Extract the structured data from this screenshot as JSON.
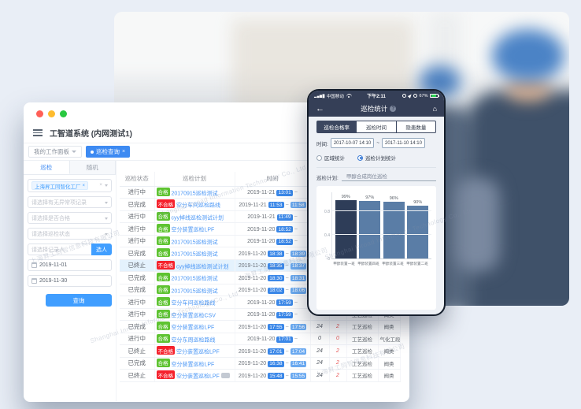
{
  "background": {
    "watermark_cn": "上海昇工同智信息科技有限公司",
    "watermark_en": "Shanghai Inroad Information Technology Co., Ltd"
  },
  "desktop": {
    "window_title": "工智道系统 (内网测试1)",
    "workspace_tabs": [
      {
        "label": "我的工作面板",
        "active": false
      },
      {
        "label": "巡检查询",
        "active": true
      }
    ],
    "sidebar": {
      "tabs": [
        {
          "label": "巡检",
          "active": true
        },
        {
          "label": "随机",
          "active": false
        }
      ],
      "factory_tag": "上海昇工同智化工厂",
      "filters": [
        {
          "placeholder": "请选择有无异常项记录"
        },
        {
          "placeholder": "请选择是否合格"
        },
        {
          "placeholder": "请选择巡检状态"
        }
      ],
      "recorder_placeholder": "请选择记录人",
      "recorder_button": "选人",
      "date_from": "2019-11-01",
      "date_to": "2019-11-30",
      "search_button": "查询"
    },
    "table": {
      "headers": [
        "巡检状态",
        "巡检计划",
        "时间",
        "编写",
        "",
        "",
        ""
      ],
      "rows": [
        {
          "status": "进行中",
          "result": "合格",
          "plan": "20170915巡检测试",
          "date": "2019-11-21",
          "start": "13:01",
          "end": "",
          "n1": "0",
          "n2": "0",
          "type": "工艺巡检",
          "area": "阀类",
          "highlight": false
        },
        {
          "status": "已完成",
          "result": "不合格",
          "plan": "空分车间巡检路线",
          "date": "2019-11-21",
          "start": "11:53",
          "end": "11:58",
          "n1": "24",
          "n2": "2",
          "type": "工艺巡检",
          "area": "阀类",
          "highlight": false
        },
        {
          "status": "进行中",
          "result": "合格",
          "plan": "cyy掉线巡检测试计划",
          "date": "2019-11-21",
          "start": "11:49",
          "end": "",
          "n1": "0",
          "n2": "0",
          "type": "工艺巡检",
          "area": "阀类",
          "highlight": false
        },
        {
          "status": "进行中",
          "result": "合格",
          "plan": "空分装置巡检LPF",
          "date": "2019-11-20",
          "start": "18:52",
          "end": "",
          "n1": "0",
          "n2": "0",
          "type": "工艺巡检",
          "area": "阀类",
          "highlight": false
        },
        {
          "status": "进行中",
          "result": "合格",
          "plan": "20170915巡检测试",
          "date": "2019-11-20",
          "start": "18:52",
          "end": "",
          "n1": "0",
          "n2": "0",
          "type": "工艺巡检",
          "area": "阀类",
          "highlight": false
        },
        {
          "status": "已完成",
          "result": "合格",
          "plan": "20170915巡检测试",
          "date": "2019-11-20",
          "start": "18:38",
          "end": "18:39",
          "n1": "24",
          "n2": "2",
          "type": "工艺巡检",
          "area": "阀类",
          "highlight": false
        },
        {
          "status": "已终止",
          "result": "不合格",
          "plan": "cyy掉线巡检测试计划",
          "date": "2019-11-20",
          "start": "18:35",
          "end": "18:37",
          "n1": "24",
          "n2": "2",
          "type": "工艺巡检",
          "area": "阀类",
          "highlight": true
        },
        {
          "status": "已完成",
          "result": "合格",
          "plan": "20170915巡检测试",
          "date": "2019-11-20",
          "start": "18:30",
          "end": "18:31",
          "n1": "24",
          "n2": "2",
          "type": "工艺巡检",
          "area": "阀类",
          "highlight": false
        },
        {
          "status": "已完成",
          "result": "合格",
          "plan": "20170915巡检测试",
          "date": "2019-11-20",
          "start": "18:02",
          "end": "18:06",
          "n1": "24",
          "n2": "2",
          "type": "工艺巡检",
          "area": "阀类",
          "highlight": false
        },
        {
          "status": "进行中",
          "result": "合格",
          "plan": "空分车间巡检路线",
          "date": "2019-11-20",
          "start": "17:59",
          "end": "",
          "n1": "0",
          "n2": "0",
          "type": "工艺巡检",
          "area": "阀类",
          "highlight": false
        },
        {
          "status": "进行中",
          "result": "合格",
          "plan": "空分装置巡检CSV",
          "date": "2019-11-20",
          "start": "17:59",
          "end": "",
          "n1": "0",
          "n2": "0",
          "type": "工艺巡检",
          "area": "阀类",
          "highlight": false
        },
        {
          "status": "已完成",
          "result": "合格",
          "plan": "空分装置巡检LPF",
          "date": "2019-11-20",
          "start": "17:55",
          "end": "17:56",
          "n1": "24",
          "n2": "2",
          "type": "工艺巡检",
          "area": "阀类",
          "highlight": false
        },
        {
          "status": "进行中",
          "result": "合格",
          "plan": "空分东周巡检路线",
          "date": "2019-11-20",
          "start": "17:01",
          "end": "",
          "n1": "0",
          "n2": "0",
          "type": "工艺巡检",
          "area": "气化工段",
          "highlight": false
        },
        {
          "status": "已终止",
          "result": "不合格",
          "plan": "空分装置巡检LPF",
          "date": "2019-11-20",
          "start": "17:01",
          "end": "17:04",
          "n1": "24",
          "n2": "2",
          "type": "工艺巡检",
          "area": "阀类",
          "highlight": false
        },
        {
          "status": "已完成",
          "result": "合格",
          "plan": "空分装置巡检LPF",
          "date": "2019-11-20",
          "start": "16:38",
          "end": "16:41",
          "n1": "24",
          "n2": "2",
          "type": "工艺巡检",
          "area": "阀类",
          "highlight": false
        },
        {
          "status": "已终止",
          "result": "不合格",
          "plan": "空分装置巡检LPF",
          "has_extra_badge": true,
          "date": "2019-11-20",
          "start": "15:48",
          "end": "15:55",
          "n1": "24",
          "n2": "2",
          "type": "工艺巡检",
          "area": "阀类",
          "highlight": false
        }
      ]
    }
  },
  "phone": {
    "status_bar": {
      "carrier": "中国移动",
      "time": "下午2:11",
      "battery": "67%"
    },
    "nav": {
      "title": "巡检统计",
      "info_glyph": "?"
    },
    "segments": [
      {
        "label": "巡检合格率",
        "active": true
      },
      {
        "label": "巡检时间",
        "active": false
      },
      {
        "label": "隐患数量",
        "active": false
      }
    ],
    "time_label": "时间:",
    "time_from": "2017-10-07 14:10",
    "time_tilde": "~",
    "time_to": "2017-11-10 14:10",
    "radio_options": [
      {
        "label": "区域统计",
        "selected": false
      },
      {
        "label": "巡检计划统计",
        "selected": true
      }
    ],
    "plan_label": "巡检计划:",
    "plan_value": "甲醇合成岗位巡检"
  },
  "chart_data": {
    "type": "bar",
    "title": "巡检合格率 (巡检计划统计: 甲醇合成岗位巡检)",
    "categories": [
      "甲醇装置一班",
      "甲醇装置四班",
      "甲醇装置三班",
      "甲醇装置二班"
    ],
    "values": [
      0.99,
      0.97,
      0.96,
      0.9
    ],
    "value_labels": [
      "99%",
      "97%",
      "96%",
      "90%"
    ],
    "xlabel": "",
    "ylabel": "",
    "ylim": [
      0,
      1
    ],
    "yticks": [
      0,
      0.4,
      0.8
    ],
    "grid": true,
    "legend_position": "none",
    "bar_colors": [
      "#2e3d58",
      "#5a7da6",
      "#5a7da6",
      "#5a7da6"
    ]
  }
}
